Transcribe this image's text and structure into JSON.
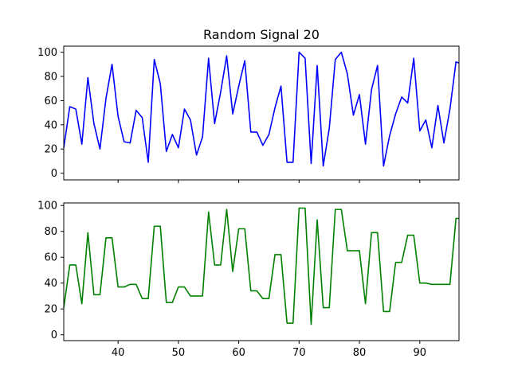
{
  "chart_data": [
    {
      "type": "line",
      "title": "Random Signal 20",
      "xlabel": "",
      "ylabel": "",
      "xlim": [
        31,
        96.5
      ],
      "ylim": [
        -5.5,
        105
      ],
      "grid": false,
      "yticks": [
        0,
        20,
        40,
        60,
        80,
        100
      ],
      "xticks": [
        40,
        50,
        60,
        70,
        80,
        90
      ],
      "show_xtick_labels": false,
      "series": [
        {
          "color": "#0000ff",
          "x": [
            31,
            32,
            33,
            34,
            35,
            36,
            37,
            38,
            39,
            40,
            41,
            42,
            43,
            44,
            45,
            46,
            47,
            48,
            49,
            50,
            51,
            52,
            53,
            54,
            55,
            56,
            57,
            58,
            59,
            60,
            61,
            62,
            63,
            64,
            65,
            66,
            67,
            68,
            69,
            70,
            71,
            72,
            73,
            74,
            75,
            76,
            77,
            78,
            79,
            80,
            81,
            82,
            83,
            84,
            85,
            86,
            87,
            88,
            89,
            90,
            91,
            92,
            93,
            94,
            95,
            96,
            96.5
          ],
          "y": [
            21,
            55,
            53,
            24,
            79,
            41,
            20,
            62,
            90,
            47,
            26,
            25,
            52,
            46,
            9,
            94,
            74,
            18,
            32,
            21,
            53,
            44,
            15,
            30,
            95,
            41,
            67,
            97,
            49,
            72,
            93,
            34,
            34,
            23,
            32,
            54,
            72,
            9,
            9,
            100,
            95,
            8,
            89,
            6,
            37,
            94,
            100,
            82,
            48,
            65,
            24,
            69,
            89,
            6,
            31,
            49,
            63,
            58,
            95,
            35,
            44,
            21,
            56,
            25,
            53,
            92,
            91
          ]
        }
      ]
    },
    {
      "type": "line",
      "title": "",
      "xlabel": "",
      "ylabel": "",
      "xlim": [
        31,
        96.5
      ],
      "ylim": [
        -4.5,
        102
      ],
      "grid": false,
      "yticks": [
        0,
        20,
        40,
        60,
        80,
        100
      ],
      "xticks": [
        40,
        50,
        60,
        70,
        80,
        90
      ],
      "show_xtick_labels": true,
      "series": [
        {
          "color": "#008000",
          "x": [
            31,
            32,
            33,
            34,
            35,
            36,
            37,
            38,
            39,
            40,
            41,
            42,
            43,
            44,
            45,
            46,
            47,
            48,
            49,
            50,
            51,
            52,
            53,
            54,
            55,
            56,
            57,
            58,
            59,
            60,
            61,
            62,
            63,
            64,
            65,
            66,
            67,
            68,
            69,
            70,
            71,
            72,
            73,
            74,
            75,
            76,
            77,
            78,
            79,
            80,
            81,
            82,
            83,
            84,
            85,
            86,
            87,
            88,
            89,
            90,
            91,
            92,
            93,
            94,
            95,
            96,
            96.5
          ],
          "y": [
            21,
            54,
            54,
            24,
            79,
            31,
            31,
            75,
            75,
            37,
            37,
            39,
            39,
            28,
            28,
            84,
            84,
            25,
            25,
            37,
            37,
            30,
            30,
            30,
            95,
            54,
            54,
            97,
            49,
            82,
            82,
            34,
            34,
            28,
            28,
            62,
            62,
            9,
            9,
            98,
            98,
            8,
            89,
            21,
            21,
            97,
            97,
            65,
            65,
            65,
            24,
            79,
            79,
            18,
            18,
            56,
            56,
            77,
            77,
            40,
            40,
            39,
            39,
            39,
            39,
            90,
            90
          ]
        }
      ]
    }
  ]
}
